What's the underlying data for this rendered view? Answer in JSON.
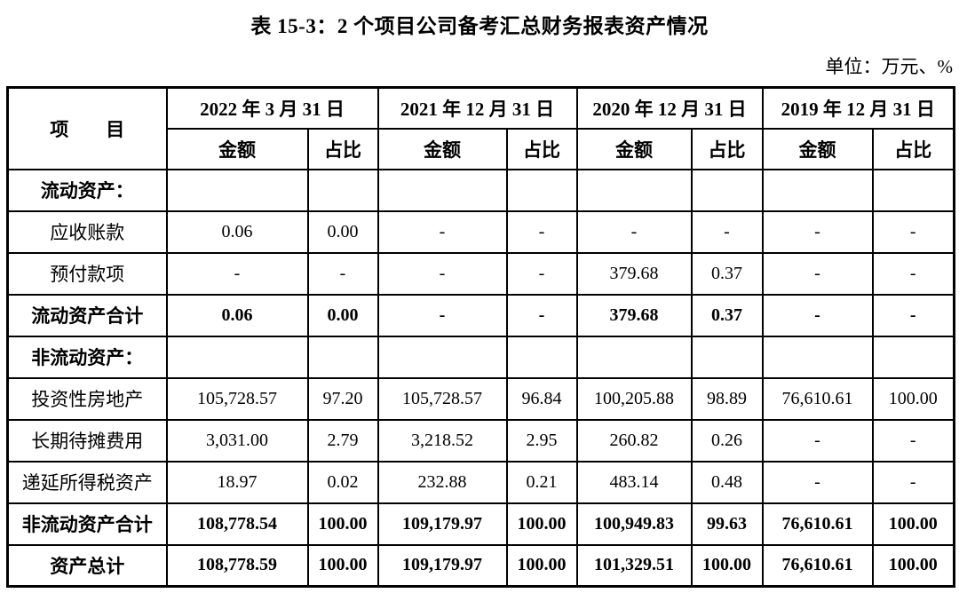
{
  "title": "表 15-3：2 个项目公司备考汇总财务报表资产情况",
  "unit_label": "单位：万元、%",
  "table": {
    "item_header": "项　　目",
    "amount_label": "金额",
    "ratio_label": "占比",
    "periods": [
      "2022 年 3 月 31 日",
      "2021 年 12 月 31 日",
      "2020 年 12 月 31 日",
      "2019 年 12 月 31 日"
    ],
    "rows": [
      {
        "label": "流动资产：",
        "bold": true,
        "values": [
          "",
          "",
          "",
          "",
          "",
          "",
          "",
          ""
        ]
      },
      {
        "label": "应收账款",
        "bold": false,
        "values": [
          "0.06",
          "0.00",
          "-",
          "-",
          "-",
          "-",
          "-",
          "-"
        ]
      },
      {
        "label": "预付款项",
        "bold": false,
        "values": [
          "-",
          "-",
          "-",
          "-",
          "379.68",
          "0.37",
          "-",
          "-"
        ]
      },
      {
        "label": "流动资产合计",
        "bold": true,
        "values": [
          "0.06",
          "0.00",
          "-",
          "-",
          "379.68",
          "0.37",
          "-",
          "-"
        ]
      },
      {
        "label": "非流动资产：",
        "bold": true,
        "values": [
          "",
          "",
          "",
          "",
          "",
          "",
          "",
          ""
        ]
      },
      {
        "label": "投资性房地产",
        "bold": false,
        "values": [
          "105,728.57",
          "97.20",
          "105,728.57",
          "96.84",
          "100,205.88",
          "98.89",
          "76,610.61",
          "100.00"
        ]
      },
      {
        "label": "长期待摊费用",
        "bold": false,
        "values": [
          "3,031.00",
          "2.79",
          "3,218.52",
          "2.95",
          "260.82",
          "0.26",
          "-",
          "-"
        ]
      },
      {
        "label": "递延所得税资产",
        "bold": false,
        "values": [
          "18.97",
          "0.02",
          "232.88",
          "0.21",
          "483.14",
          "0.48",
          "-",
          "-"
        ]
      },
      {
        "label": "非流动资产合计",
        "bold": true,
        "values": [
          "108,778.54",
          "100.00",
          "109,179.97",
          "100.00",
          "100,949.83",
          "99.63",
          "76,610.61",
          "100.00"
        ]
      },
      {
        "label": "资产总计",
        "bold": true,
        "values": [
          "108,778.59",
          "100.00",
          "109,179.97",
          "100.00",
          "101,329.51",
          "100.00",
          "76,610.61",
          "100.00"
        ]
      }
    ]
  }
}
